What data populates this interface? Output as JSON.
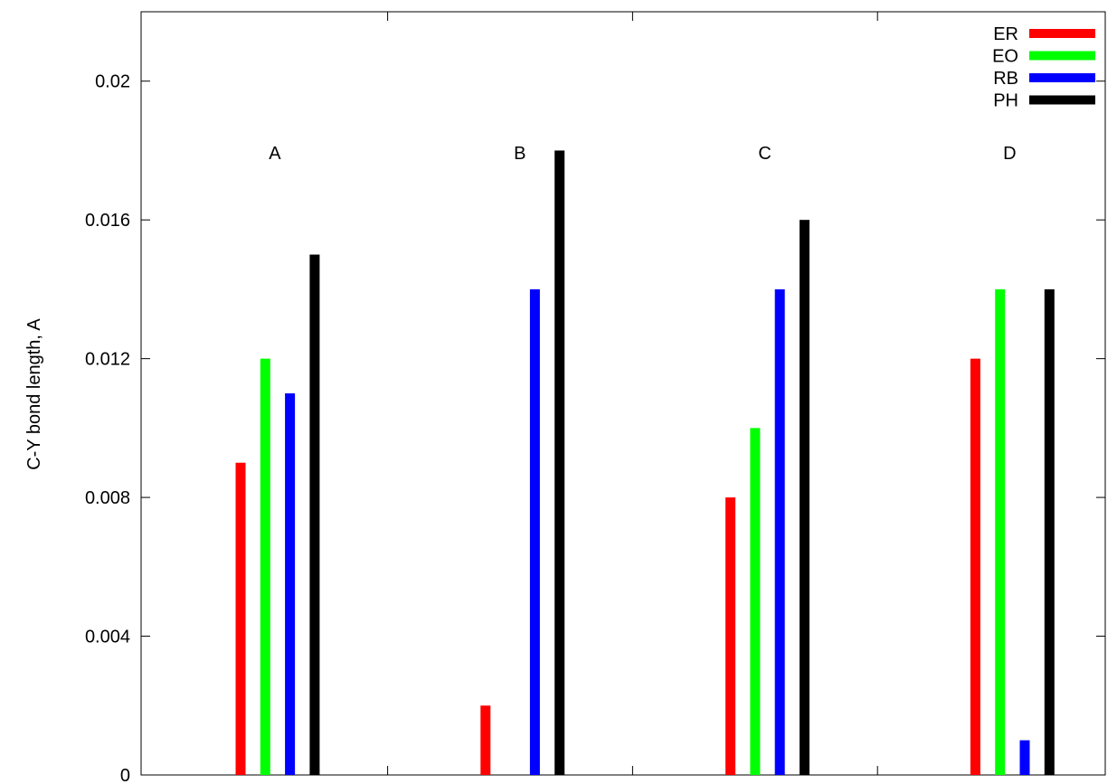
{
  "chart_data": {
    "type": "bar",
    "title": "",
    "xlabel": "",
    "ylabel": "C-Y bond length, A",
    "ylim": [
      0,
      0.022
    ],
    "yticks": [
      "0",
      "0.004",
      "0.008",
      "0.012",
      "0.016",
      "0.02"
    ],
    "ytick_values": [
      0,
      0.004,
      0.008,
      0.012,
      0.016,
      0.02
    ],
    "categories": [
      "A",
      "B",
      "C",
      "D"
    ],
    "series": [
      {
        "name": "ER",
        "color": "#ff0000",
        "values": [
          0.009,
          0.002,
          0.008,
          0.012
        ]
      },
      {
        "name": "EO",
        "color": "#00ff00",
        "values": [
          0.012,
          0.0,
          0.01,
          0.014
        ]
      },
      {
        "name": "RB",
        "color": "#0000ff",
        "values": [
          0.011,
          0.014,
          0.014,
          0.001
        ]
      },
      {
        "name": "PH",
        "color": "#000000",
        "values": [
          0.015,
          0.018,
          0.016,
          0.014
        ]
      }
    ],
    "grid": false,
    "legend": "top-right"
  }
}
